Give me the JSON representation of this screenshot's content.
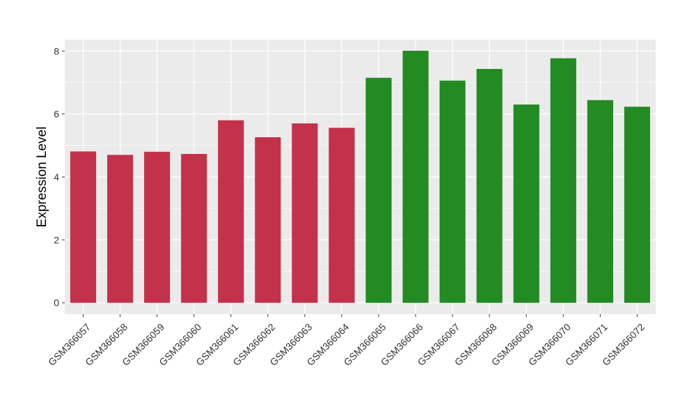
{
  "chart_data": {
    "type": "bar",
    "title": "",
    "xlabel": "",
    "ylabel": "Expression Level",
    "ylim": [
      -0.36,
      8.36
    ],
    "yticks": [
      0,
      2,
      4,
      6,
      8
    ],
    "grid": true,
    "legend": "none",
    "categories": [
      "GSM366057",
      "GSM366058",
      "GSM366059",
      "GSM366060",
      "GSM366061",
      "GSM366062",
      "GSM366063",
      "GSM366064",
      "GSM366065",
      "GSM366066",
      "GSM366067",
      "GSM366068",
      "GSM366069",
      "GSM366070",
      "GSM366071",
      "GSM366072"
    ],
    "values": [
      4.81,
      4.7,
      4.8,
      4.73,
      5.8,
      5.26,
      5.7,
      5.56,
      7.15,
      8.01,
      7.06,
      7.43,
      6.3,
      7.77,
      6.44,
      6.23
    ],
    "bar_colors": [
      "#c4314b",
      "#c4314b",
      "#c4314b",
      "#c4314b",
      "#c4314b",
      "#c4314b",
      "#c4314b",
      "#c4314b",
      "#228b22",
      "#228b22",
      "#228b22",
      "#228b22",
      "#228b22",
      "#228b22",
      "#228b22",
      "#228b22"
    ],
    "panel_color": "#ebebeb",
    "grid_color": "#ffffff"
  }
}
